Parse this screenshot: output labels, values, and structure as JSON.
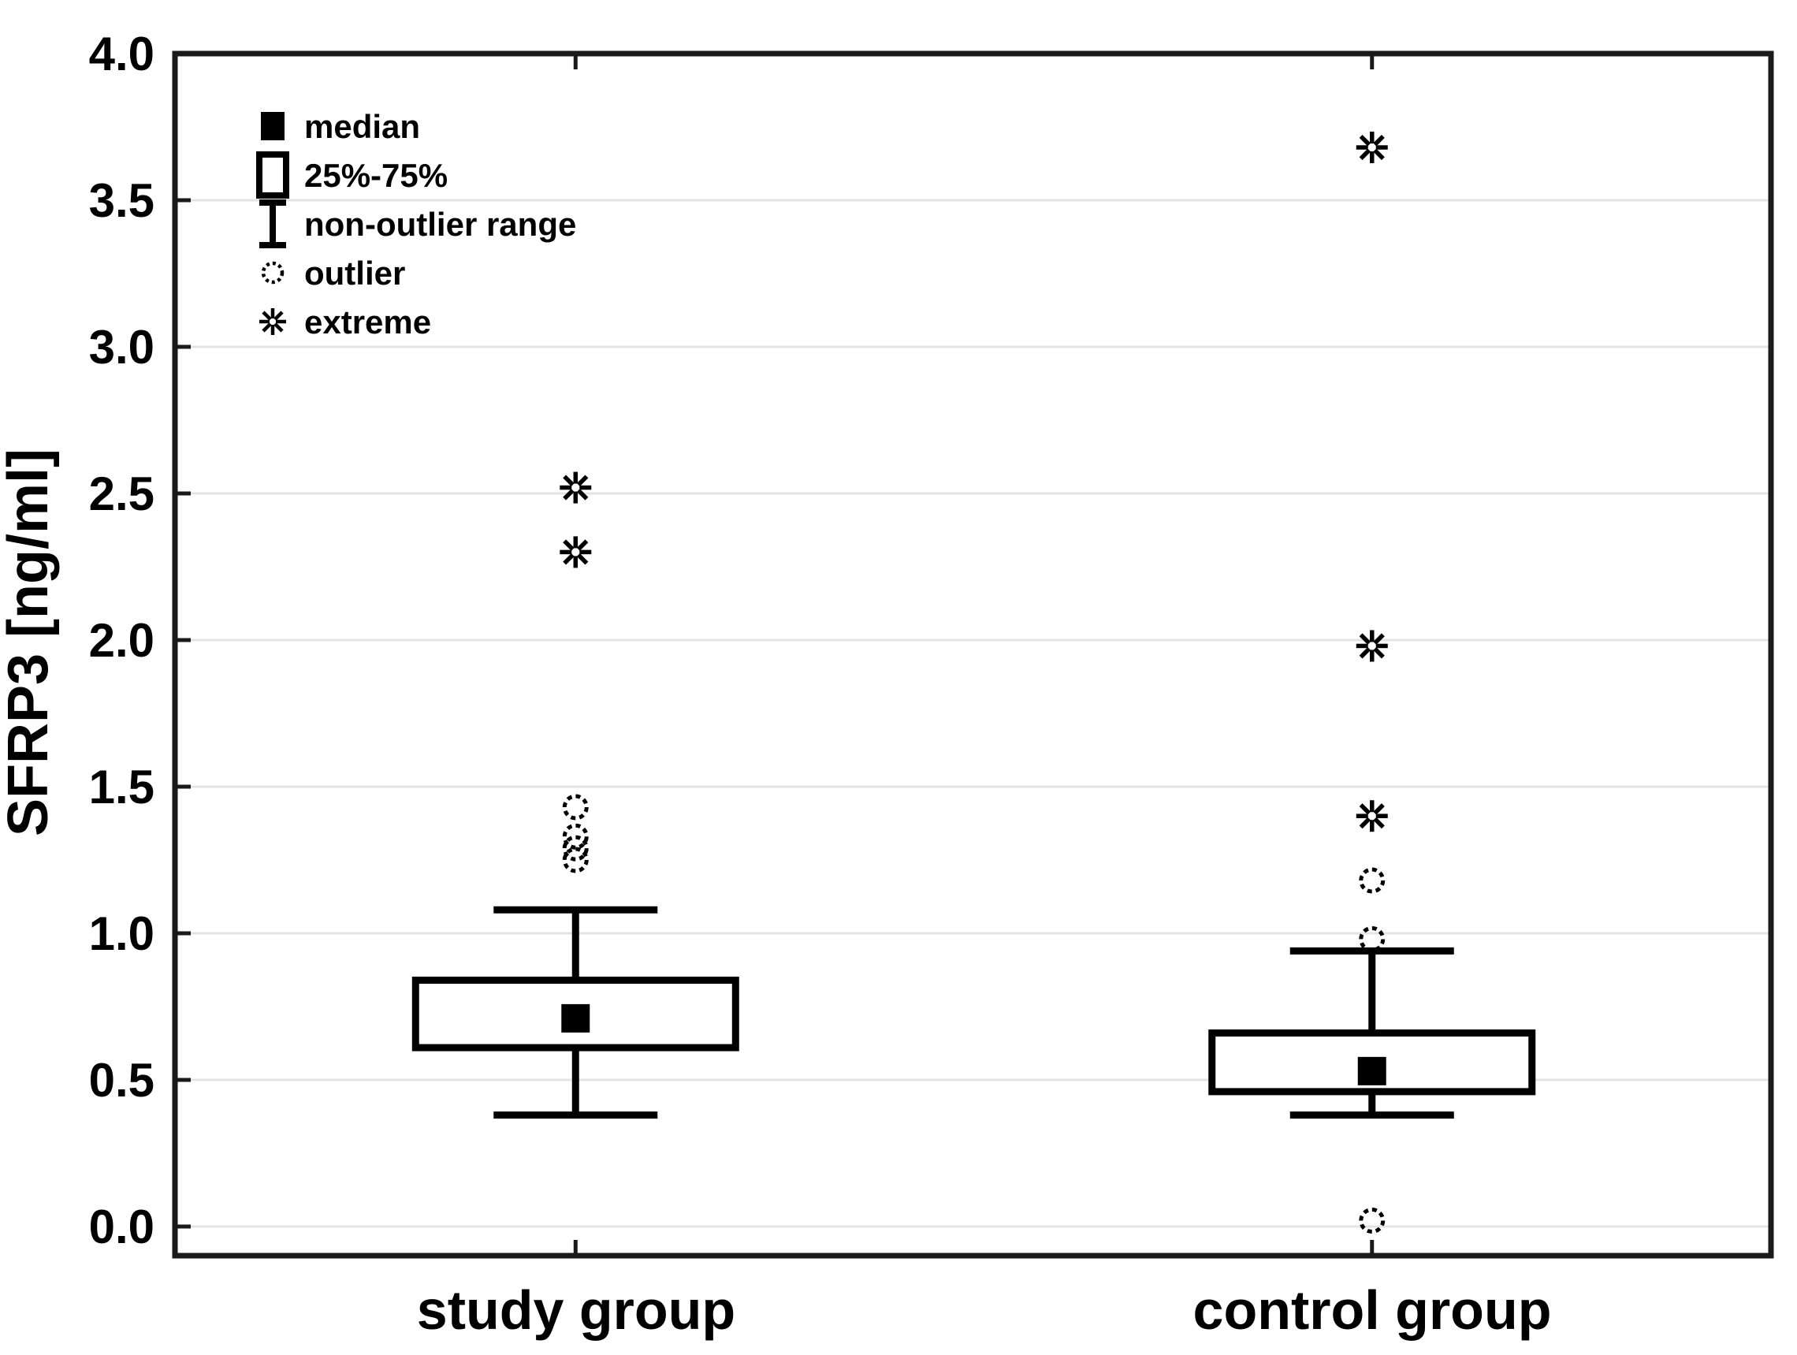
{
  "chart_data": {
    "type": "box",
    "title": "",
    "ylabel": "SFRP3 [ng/ml]",
    "xlabel": "",
    "ylim": [
      0.0,
      4.0
    ],
    "ytick_step": 0.5,
    "ytick_labels": [
      "0.0",
      "0.5",
      "1.0",
      "1.5",
      "2.0",
      "2.5",
      "3.0",
      "3.5",
      "4.0"
    ],
    "grid": "horizontal-gridlines-on",
    "legend_position": "top-left-inside",
    "legend": [
      {
        "symbol": "median-square",
        "label": "median"
      },
      {
        "symbol": "iqr-box",
        "label": "25%-75%"
      },
      {
        "symbol": "whisker-range",
        "label": "non-outlier range"
      },
      {
        "symbol": "outlier-circle",
        "label": "outlier"
      },
      {
        "symbol": "extreme-asterisk",
        "label": "extreme"
      }
    ],
    "categories": [
      {
        "label": "study group",
        "x_frac": 0.251,
        "median": 0.71,
        "q1": 0.61,
        "q3": 0.84,
        "whisker_low": 0.38,
        "whisker_high": 1.08,
        "outliers": [
          1.43,
          1.33,
          1.29,
          1.25
        ],
        "extremes": [
          2.52,
          2.3
        ]
      },
      {
        "label": "control group",
        "x_frac": 0.75,
        "median": 0.53,
        "q1": 0.46,
        "q3": 0.66,
        "whisker_low": 0.38,
        "whisker_high": 0.94,
        "outliers": [
          1.18,
          0.98,
          0.02
        ],
        "extremes": [
          3.68,
          1.98,
          1.4
        ]
      }
    ],
    "colors": {
      "stroke": "#000000",
      "frame": "#1a1a1a",
      "grid": "#e4e4e4",
      "text": "#000000",
      "background": "#ffffff"
    }
  }
}
